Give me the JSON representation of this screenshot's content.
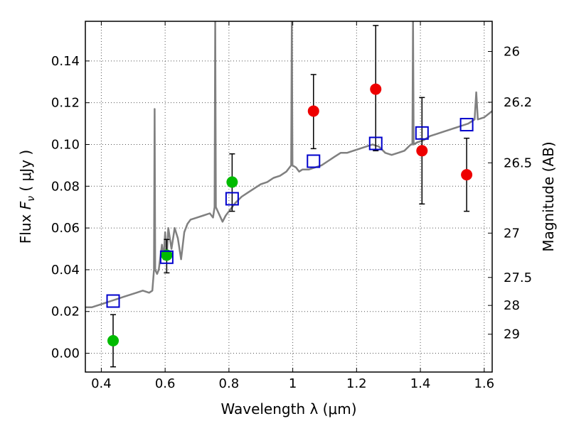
{
  "chart_data": {
    "type": "scatter",
    "xlabel": "Wavelength  λ (μm)",
    "ylabel": "Flux  F_ν  ( μJy )",
    "ylabel_parts": {
      "pre": "Flux  ",
      "F": "F",
      "nu": "ν",
      "post": "  ( μJy )"
    },
    "y2label": "Magnitude (AB)",
    "xlim": [
      0.35,
      1.625
    ],
    "ylim": [
      -0.009,
      0.159
    ],
    "grid": true,
    "x_ticks": [
      {
        "value": 0.4,
        "label": "0.4"
      },
      {
        "value": 0.6,
        "label": "0.6"
      },
      {
        "value": 0.8,
        "label": "0.8"
      },
      {
        "value": 1.0,
        "label": "1"
      },
      {
        "value": 1.2,
        "label": "1.2"
      },
      {
        "value": 1.4,
        "label": "1.4"
      },
      {
        "value": 1.6,
        "label": "1.6"
      }
    ],
    "y_ticks": [
      {
        "value": 0.0,
        "label": "0.00"
      },
      {
        "value": 0.02,
        "label": "0.02"
      },
      {
        "value": 0.04,
        "label": "0.04"
      },
      {
        "value": 0.06,
        "label": "0.06"
      },
      {
        "value": 0.08,
        "label": "0.08"
      },
      {
        "value": 0.1,
        "label": "0.10"
      },
      {
        "value": 0.12,
        "label": "0.12"
      },
      {
        "value": 0.14,
        "label": "0.14"
      }
    ],
    "y2_ticks": [
      {
        "mag": 26,
        "label": "26"
      },
      {
        "mag": 26.2,
        "label": "26.2"
      },
      {
        "mag": 26.5,
        "label": "26.5"
      },
      {
        "mag": 27,
        "label": "27"
      },
      {
        "mag": 27.5,
        "label": "27.5"
      },
      {
        "mag": 28,
        "label": "28"
      },
      {
        "mag": 29,
        "label": "29"
      }
    ],
    "colors": {
      "model": "#808080",
      "green": "#00bb00",
      "red": "#ee0000",
      "square": "#0000cc",
      "errorbar": "#000000",
      "grid": "#555555"
    },
    "model_spectrum": [
      [
        0.35,
        0.022
      ],
      [
        0.37,
        0.022
      ],
      [
        0.39,
        0.023
      ],
      [
        0.41,
        0.024
      ],
      [
        0.43,
        0.025
      ],
      [
        0.45,
        0.026
      ],
      [
        0.47,
        0.027
      ],
      [
        0.49,
        0.028
      ],
      [
        0.51,
        0.029
      ],
      [
        0.53,
        0.03
      ],
      [
        0.55,
        0.029
      ],
      [
        0.56,
        0.03
      ],
      [
        0.565,
        0.04
      ],
      [
        0.567,
        0.117
      ],
      [
        0.569,
        0.04
      ],
      [
        0.575,
        0.038
      ],
      [
        0.58,
        0.04
      ],
      [
        0.59,
        0.052
      ],
      [
        0.595,
        0.045
      ],
      [
        0.6,
        0.058
      ],
      [
        0.605,
        0.046
      ],
      [
        0.61,
        0.06
      ],
      [
        0.62,
        0.05
      ],
      [
        0.63,
        0.06
      ],
      [
        0.64,
        0.055
      ],
      [
        0.65,
        0.045
      ],
      [
        0.66,
        0.058
      ],
      [
        0.67,
        0.062
      ],
      [
        0.68,
        0.064
      ],
      [
        0.7,
        0.065
      ],
      [
        0.72,
        0.066
      ],
      [
        0.74,
        0.067
      ],
      [
        0.75,
        0.065
      ],
      [
        0.755,
        0.07
      ],
      [
        0.757,
        0.16
      ],
      [
        0.759,
        0.07
      ],
      [
        0.765,
        0.068
      ],
      [
        0.78,
        0.063
      ],
      [
        0.79,
        0.066
      ],
      [
        0.8,
        0.068
      ],
      [
        0.82,
        0.072
      ],
      [
        0.84,
        0.075
      ],
      [
        0.86,
        0.077
      ],
      [
        0.88,
        0.079
      ],
      [
        0.9,
        0.081
      ],
      [
        0.92,
        0.082
      ],
      [
        0.94,
        0.084
      ],
      [
        0.96,
        0.085
      ],
      [
        0.98,
        0.087
      ],
      [
        0.995,
        0.09
      ],
      [
        0.997,
        0.16
      ],
      [
        0.999,
        0.09
      ],
      [
        1.01,
        0.089
      ],
      [
        1.02,
        0.087
      ],
      [
        1.03,
        0.088
      ],
      [
        1.05,
        0.088
      ],
      [
        1.07,
        0.089
      ],
      [
        1.09,
        0.09
      ],
      [
        1.11,
        0.092
      ],
      [
        1.13,
        0.094
      ],
      [
        1.15,
        0.096
      ],
      [
        1.17,
        0.096
      ],
      [
        1.19,
        0.097
      ],
      [
        1.21,
        0.098
      ],
      [
        1.23,
        0.099
      ],
      [
        1.25,
        0.1
      ],
      [
        1.27,
        0.099
      ],
      [
        1.29,
        0.096
      ],
      [
        1.31,
        0.095
      ],
      [
        1.33,
        0.096
      ],
      [
        1.35,
        0.097
      ],
      [
        1.37,
        0.1
      ],
      [
        1.375,
        0.1
      ],
      [
        1.377,
        0.16
      ],
      [
        1.379,
        0.1
      ],
      [
        1.39,
        0.101
      ],
      [
        1.41,
        0.102
      ],
      [
        1.43,
        0.104
      ],
      [
        1.45,
        0.105
      ],
      [
        1.47,
        0.106
      ],
      [
        1.49,
        0.107
      ],
      [
        1.51,
        0.108
      ],
      [
        1.53,
        0.109
      ],
      [
        1.55,
        0.11
      ],
      [
        1.57,
        0.112
      ],
      [
        1.575,
        0.125
      ],
      [
        1.58,
        0.112
      ],
      [
        1.6,
        0.113
      ],
      [
        1.625,
        0.116
      ]
    ],
    "series": [
      {
        "color": "green",
        "marker": "circle",
        "points": [
          {
            "x": 0.437,
            "y": 0.006,
            "err_low": -0.0065,
            "err_high": 0.0185
          },
          {
            "x": 0.605,
            "y": 0.047,
            "err_low": 0.0385,
            "err_high": 0.0545
          },
          {
            "x": 0.81,
            "y": 0.082,
            "err_low": 0.068,
            "err_high": 0.0955
          }
        ]
      },
      {
        "color": "red",
        "marker": "circle",
        "points": [
          {
            "x": 1.065,
            "y": 0.116,
            "err_low": 0.098,
            "err_high": 0.1335
          },
          {
            "x": 1.26,
            "y": 0.1265,
            "err_low": 0.097,
            "err_high": 0.157
          },
          {
            "x": 1.405,
            "y": 0.097,
            "err_low": 0.0715,
            "err_high": 0.1225
          },
          {
            "x": 1.545,
            "y": 0.0855,
            "err_low": 0.068,
            "err_high": 0.103
          }
        ]
      },
      {
        "color": "square",
        "marker": "open-square",
        "points": [
          {
            "x": 0.437,
            "y": 0.025
          },
          {
            "x": 0.605,
            "y": 0.046
          },
          {
            "x": 0.81,
            "y": 0.074
          },
          {
            "x": 1.065,
            "y": 0.092
          },
          {
            "x": 1.26,
            "y": 0.1005
          },
          {
            "x": 1.405,
            "y": 0.1055
          },
          {
            "x": 1.545,
            "y": 0.1095
          }
        ]
      }
    ]
  }
}
